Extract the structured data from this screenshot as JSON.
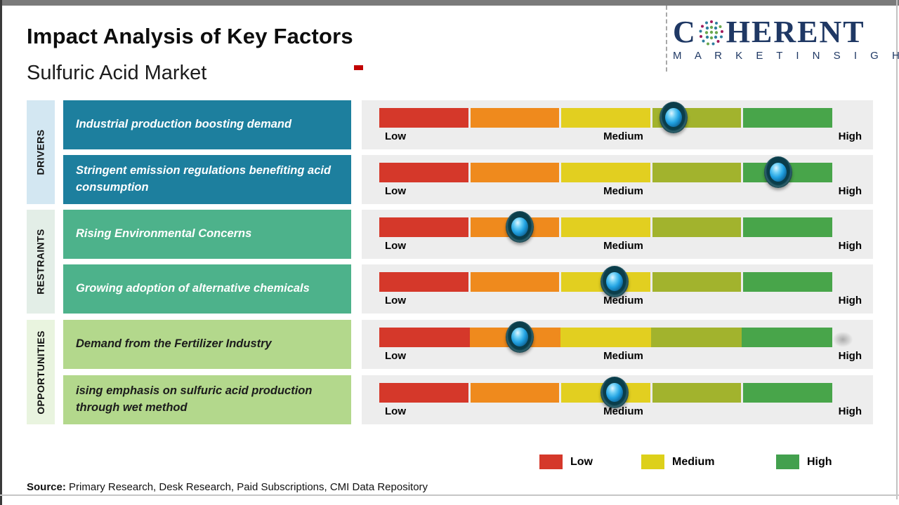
{
  "page": {
    "title": "Impact Analysis of Key Factors",
    "subtitle": "Sulfuric Acid Market",
    "source_label": "Source:",
    "source_text": " Primary Research, Desk Research, Paid Subscriptions, CMI Data Repository"
  },
  "logo": {
    "name_prefix": "C",
    "name_suffix": "HERENT",
    "tagline": "M A R K E T   I N S I G H T S",
    "navy": "#1f3864",
    "globe_icon": "globe-dots-icon"
  },
  "groups": [
    {
      "label": "DRIVERS",
      "strip_color": "#d3e7f2",
      "box_color": "#1d7f9e",
      "text_color": "#ffffff"
    },
    {
      "label": "RESTRAINTS",
      "strip_color": "#e3eee7",
      "box_color": "#4db28b",
      "text_color": "#ffffff"
    },
    {
      "label": "OPPORTUNITIES",
      "strip_color": "#e9f4df",
      "box_color": "#b3d88c",
      "text_color": "#1c1c1c"
    }
  ],
  "factors": [
    {
      "group_index": 0,
      "label": "Industrial production boosting demand",
      "impact_position": 0.65
    },
    {
      "group_index": 0,
      "label": "Stringent emission regulations benefiting acid consumption",
      "impact_position": 0.88
    },
    {
      "group_index": 1,
      "label": "Rising Environmental Concerns",
      "impact_position": 0.31
    },
    {
      "group_index": 1,
      "label": "Growing adoption of alternative chemicals",
      "impact_position": 0.52
    },
    {
      "group_index": 2,
      "label": "Demand from the Fertilizer Industry",
      "impact_position": 0.31
    },
    {
      "group_index": 2,
      "label": "ising emphasis on sulfuric acid production through wet method",
      "impact_position": 0.52
    }
  ],
  "scale": {
    "low": "Low",
    "medium": "Medium",
    "high": "High",
    "segment_colors": [
      "#d5382a",
      "#ef8a1d",
      "#e2cf20",
      "#a2b32d",
      "#48a54a"
    ],
    "marker": {
      "ring_color": "#123b46",
      "sphere_color": "#2aa7e8"
    }
  },
  "legend": [
    {
      "label": "Low",
      "color": "#d5382a"
    },
    {
      "label": "Medium",
      "color": "#ddd01a"
    },
    {
      "label": "High",
      "color": "#43a04e"
    }
  ],
  "chart_data": {
    "type": "dot-scale",
    "title": "Impact Analysis of Key Factors",
    "subtitle": "Sulfuric Acid Market",
    "scale_labels": [
      "Low",
      "Medium",
      "High"
    ],
    "scale_range": [
      0,
      1
    ],
    "categories": [
      "Industrial production boosting demand",
      "Stringent emission regulations benefiting acid consumption",
      "Rising Environmental Concerns",
      "Growing adoption of alternative chemicals",
      "Demand from the Fertilizer Industry",
      "ising emphasis on sulfuric acid production through wet method"
    ],
    "groups": [
      "Drivers",
      "Drivers",
      "Restraints",
      "Restraints",
      "Opportunities",
      "Opportunities"
    ],
    "values": [
      0.65,
      0.88,
      0.31,
      0.52,
      0.31,
      0.52
    ],
    "impact_levels": [
      "Medium-High",
      "High",
      "Low-Medium",
      "Medium",
      "Low-Medium",
      "Medium"
    ],
    "legend_position": "bottom",
    "grid": false
  }
}
